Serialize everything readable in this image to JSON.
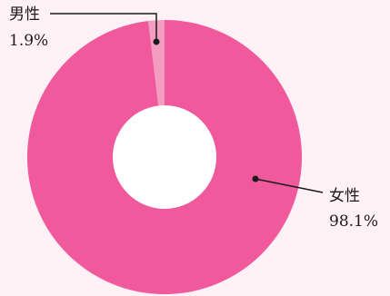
{
  "chart_data": {
    "type": "pie",
    "donut": true,
    "slices": [
      {
        "label": "男性",
        "value": 1.9,
        "value_text": "1.9%",
        "color": "#f39ec0"
      },
      {
        "label": "女性",
        "value": 98.1,
        "value_text": "98.1%",
        "color": "#f05a9c"
      }
    ]
  },
  "colors": {
    "background": "#fff1f5",
    "hole": "#ffffff",
    "leader_line": "#1a1a1a"
  }
}
